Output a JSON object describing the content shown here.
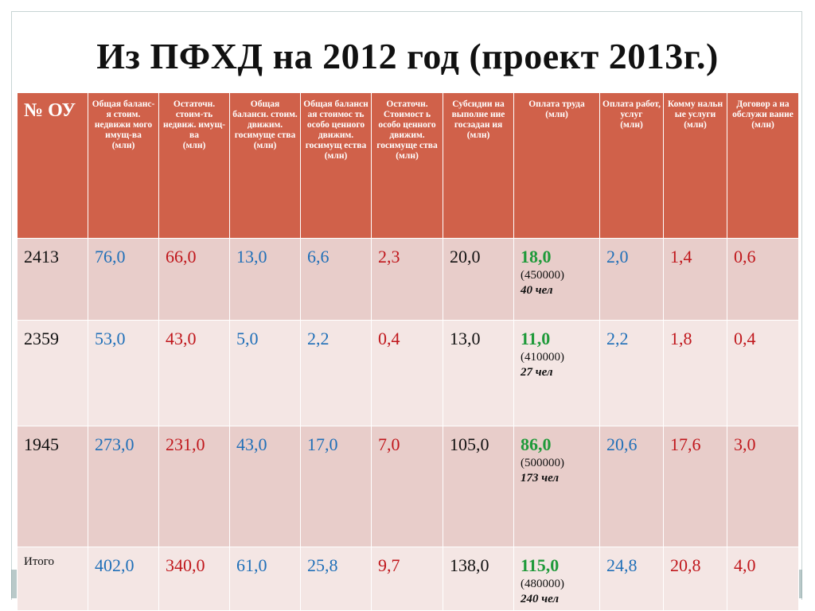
{
  "title": "Из ПФХД на 2012 год (проект 2013г.)",
  "colors": {
    "header_bg": "#d0614a",
    "row_dark": "#e8cdca",
    "row_light": "#f4e6e4",
    "blue": "#1f6fb8",
    "red": "#c0171c",
    "green": "#1f9a3a"
  },
  "headers": [
    {
      "text": "№ ОУ",
      "unit": ""
    },
    {
      "text": "Общая баланс-я стоим. недвижи мого имущ-ва",
      "unit": "(млн)"
    },
    {
      "text": "Остаточн. стоим-ть недвиж. имущ-ва",
      "unit": "(млн)"
    },
    {
      "text": "Общая балансн. стоим. движим. госимуще ства",
      "unit": "(млн)"
    },
    {
      "text": "Общая балансн ая стоимос ть особо ценного движим. госимущ ества",
      "unit": "(млн)"
    },
    {
      "text": "Остаточн. Стоимост ь особо ценного движим. госимуще ства",
      "unit": "(млн)"
    },
    {
      "text": "Субсидии на выполне ние госзадан ия",
      "unit": "(млн)"
    },
    {
      "text": "Оплата труда",
      "unit": "(млн)"
    },
    {
      "text": "Оплата работ, услуг",
      "unit": "(млн)"
    },
    {
      "text": "Комму нальн ые услуги",
      "unit": "(млн)"
    },
    {
      "text": "Договор а на обслужи вание",
      "unit": "(млн)"
    }
  ],
  "rows": [
    {
      "ou": "2413",
      "c1": "76,0",
      "c2": "66,0",
      "c3": "13,0",
      "c4": "6,6",
      "c5": "2,3",
      "c6": "20,0",
      "pay": "18,0",
      "pay_sub": "(450000)",
      "pay_ppl": "40 чел",
      "c8": "2,0",
      "c9": "1,4",
      "c10": "0,6"
    },
    {
      "ou": "2359",
      "c1": "53,0",
      "c2": "43,0",
      "c3": "5,0",
      "c4": "2,2",
      "c5": "0,4",
      "c6": "13,0",
      "pay": "11,0",
      "pay_sub": "(410000)",
      "pay_ppl": "27 чел",
      "c8": "2,2",
      "c9": "1,8",
      "c10": "0,4"
    },
    {
      "ou": "1945",
      "c1": "273,0",
      "c2": "231,0",
      "c3": "43,0",
      "c4": "17,0",
      "c5": "7,0",
      "c6": "105,0",
      "pay": "86,0",
      "pay_sub": "(500000)",
      "pay_ppl": "173 чел",
      "c8": "20,6",
      "c9": "17,6",
      "c10": "3,0"
    },
    {
      "ou": "Итого",
      "c1": "402,0",
      "c2": "340,0",
      "c3": "61,0",
      "c4": "25,8",
      "c5": "9,7",
      "c6": "138,0",
      "pay": "115,0",
      "pay_sub": "(480000)",
      "pay_ppl": "240 чел",
      "c8": "24,8",
      "c9": "20,8",
      "c10": "4,0"
    }
  ]
}
